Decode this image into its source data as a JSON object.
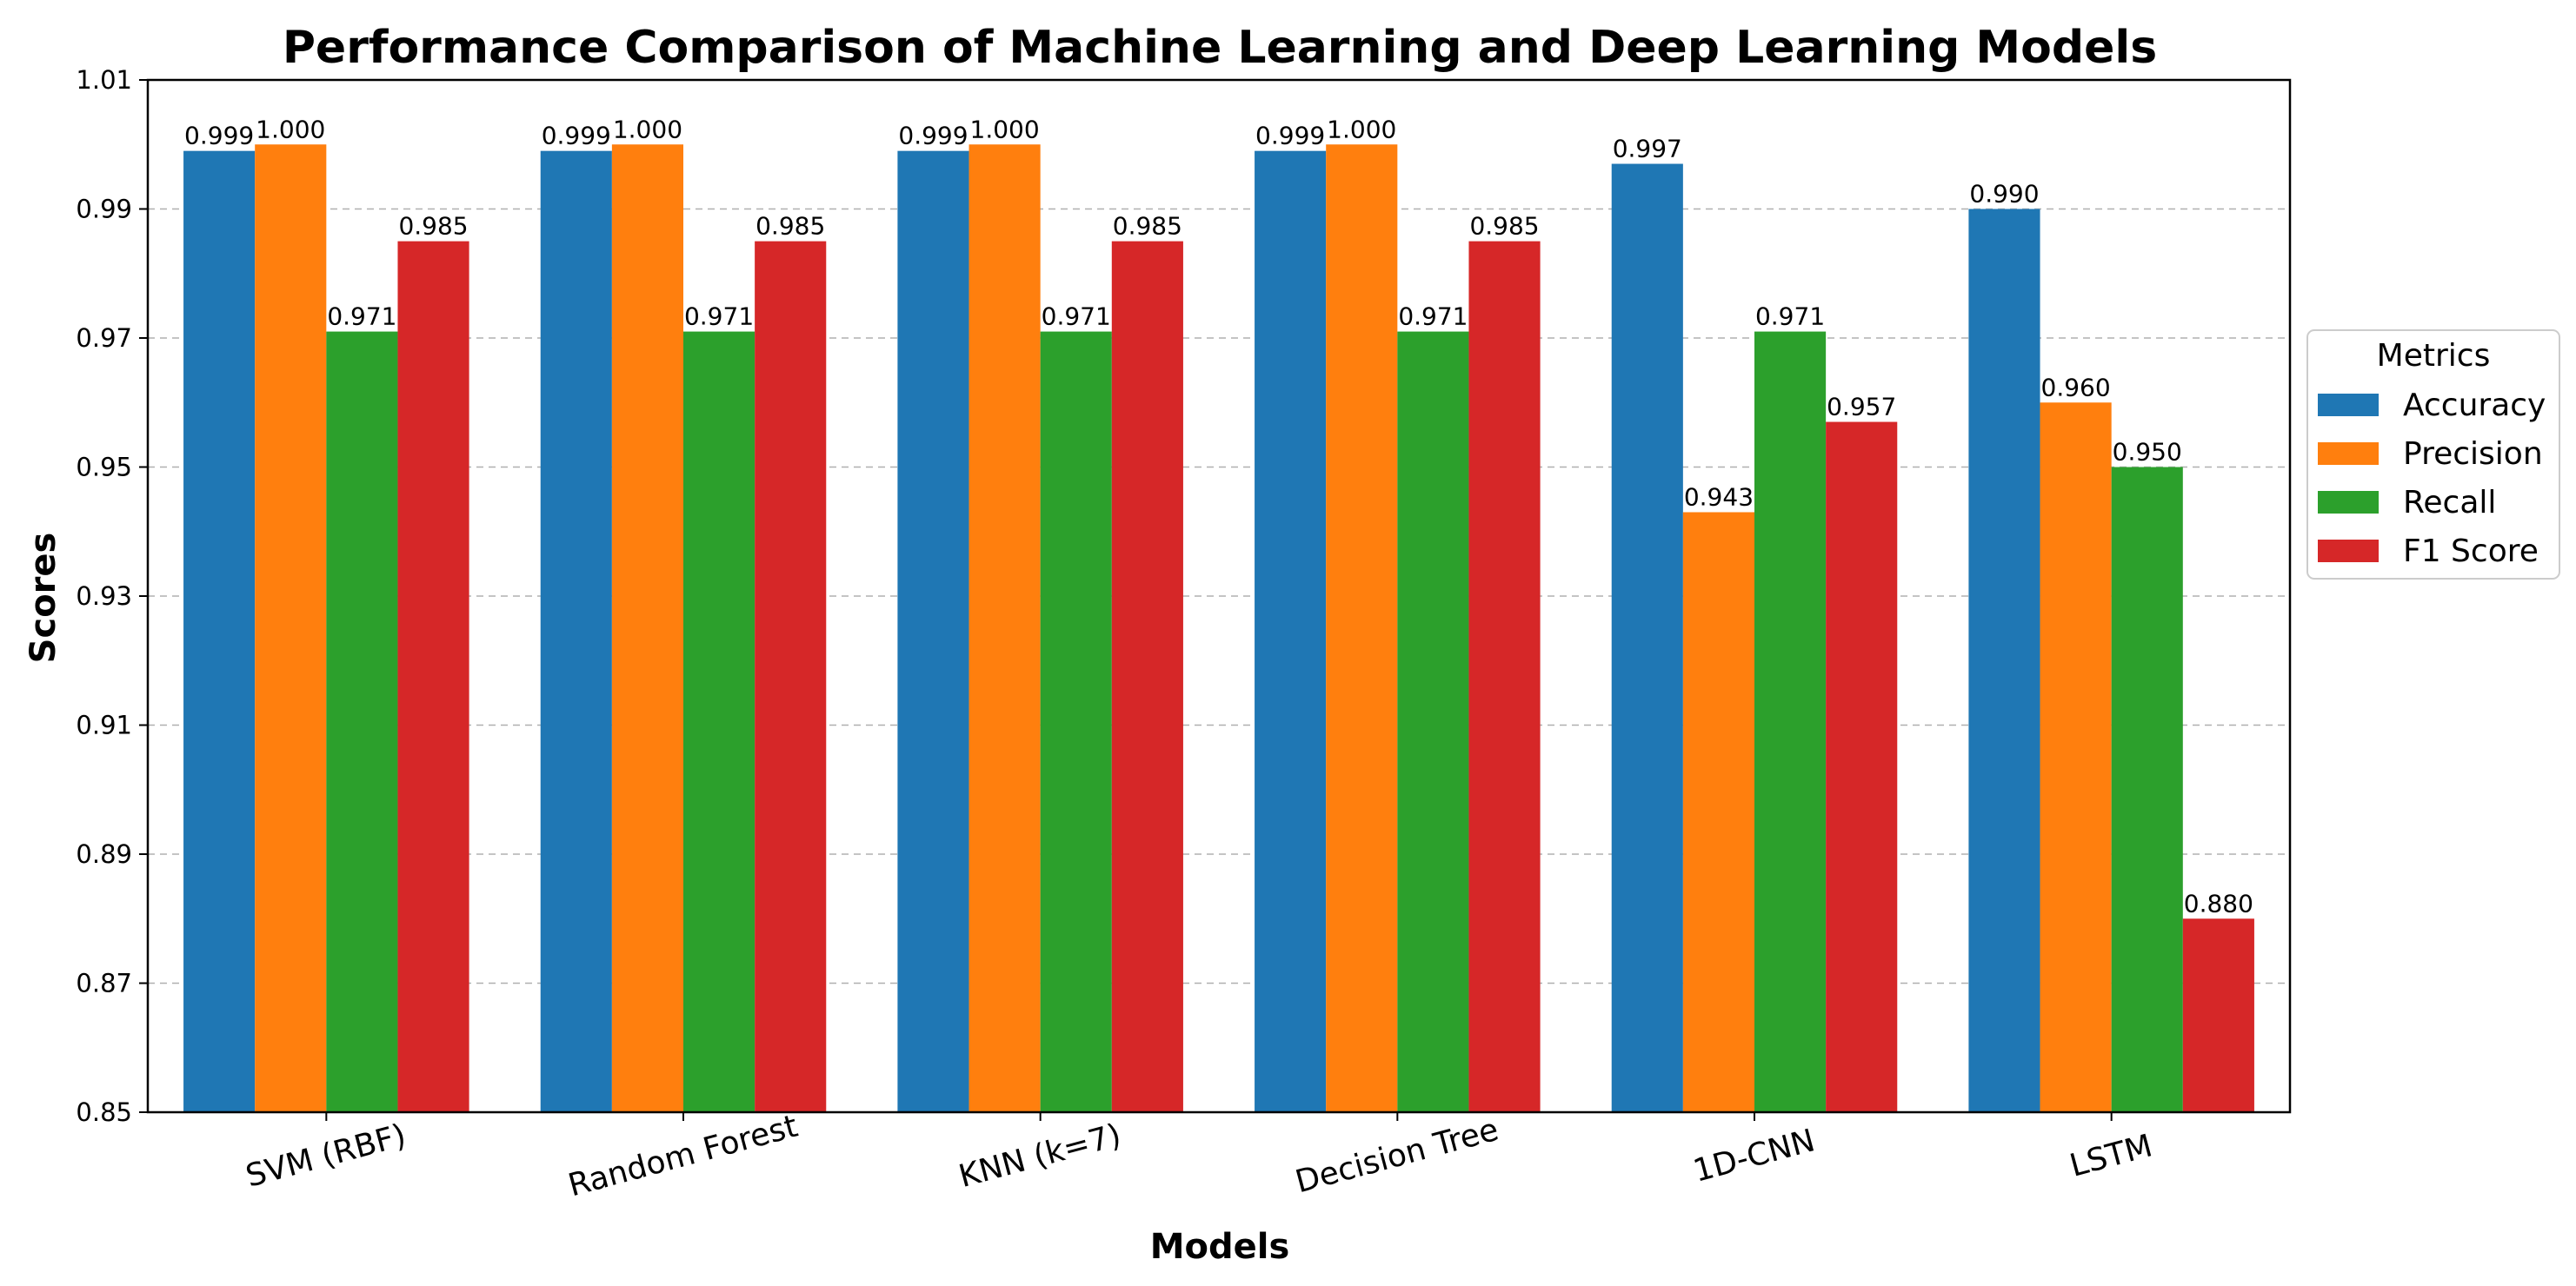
{
  "chart_data": {
    "type": "bar",
    "title": "Performance Comparison of Machine Learning and Deep Learning Models",
    "xlabel": "Models",
    "ylabel": "Scores",
    "ylim": [
      0.85,
      1.01
    ],
    "yticks": [
      "0.85",
      "0.87",
      "0.89",
      "0.91",
      "0.93",
      "0.95",
      "0.97",
      "0.99",
      "1.01"
    ],
    "grid": "horizontal dashed",
    "legend_title": "Metrics",
    "legend_position": "right, outside plot",
    "categories": [
      "SVM (RBF)",
      "Random Forest",
      "KNN (k=7)",
      "Decision Tree",
      "1D-CNN",
      "LSTM"
    ],
    "series": [
      {
        "name": "Accuracy",
        "color": "#1f77b4",
        "values": [
          0.999,
          0.999,
          0.999,
          0.999,
          0.997,
          0.99
        ],
        "labels": [
          "0.999",
          "0.999",
          "0.999",
          "0.999",
          "0.997",
          "0.990"
        ]
      },
      {
        "name": "Precision",
        "color": "#ff7f0e",
        "values": [
          1.0,
          1.0,
          1.0,
          1.0,
          0.943,
          0.96
        ],
        "labels": [
          "1.000",
          "1.000",
          "1.000",
          "1.000",
          "0.943",
          "0.960"
        ]
      },
      {
        "name": "Recall",
        "color": "#2ca02c",
        "values": [
          0.971,
          0.971,
          0.971,
          0.971,
          0.971,
          0.95
        ],
        "labels": [
          "0.971",
          "0.971",
          "0.971",
          "0.971",
          "0.971",
          "0.950"
        ]
      },
      {
        "name": "F1 Score",
        "color": "#d62728",
        "values": [
          0.985,
          0.985,
          0.985,
          0.985,
          0.957,
          0.88
        ],
        "labels": [
          "0.985",
          "0.985",
          "0.985",
          "0.985",
          "0.957",
          "0.880"
        ]
      }
    ]
  }
}
